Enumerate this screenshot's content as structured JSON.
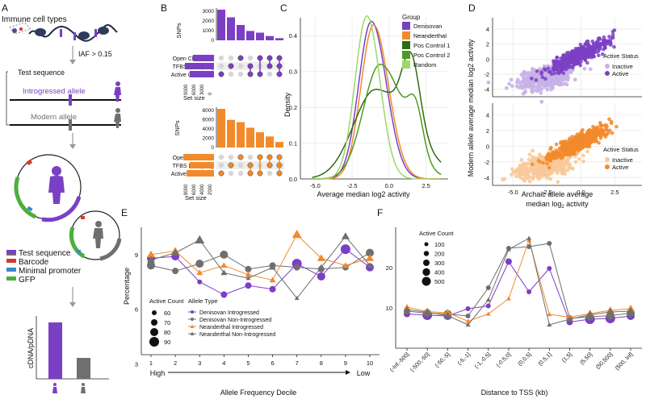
{
  "panels": {
    "a": "A",
    "b": "B",
    "c": "C",
    "d": "D",
    "e": "E",
    "f": "F"
  },
  "colors": {
    "purple": "#7b3fc4",
    "purple_light": "#c6b2e6",
    "orange": "#f28a2b",
    "orange_light": "#f8c99a",
    "grey": "#6f6f6f",
    "green_dark": "#2e6b12",
    "green_mid": "#4c9a24",
    "green_light": "#9ad86a"
  },
  "panel_a": {
    "title": "Immune cell types",
    "iaf_label": "IAF > 0.15",
    "test_sequence": "Test sequence",
    "introgressed_allele": "Introgressed allele",
    "modern_allele": "Modern allele",
    "legend": [
      "Test sequence",
      "Barcode",
      "Minimal promoter",
      "GFP"
    ],
    "bar_ylabel": "cDNA/pDNA"
  },
  "panel_b": {
    "snps_label": "SNPs",
    "sets": [
      "Open Chromatin",
      "TFBS Disrupting",
      "Active Chromatin"
    ],
    "set_size_label": "Set size",
    "top_yticks": [
      "3000",
      "2000",
      "1000",
      "0"
    ],
    "top_xticks": [
      "9000",
      "6000",
      "3000",
      "0"
    ],
    "bottom_yticks": [
      "8000",
      "6000",
      "4000",
      "2000",
      "0"
    ],
    "bottom_xticks": [
      "8000",
      "6000",
      "4000",
      "2000"
    ],
    "top_bars": [
      3600,
      2700,
      1800,
      1100,
      900,
      500,
      250
    ],
    "bottom_bars": [
      8400,
      6000,
      5500,
      4300,
      3300,
      2400,
      1200
    ]
  },
  "chart_data": [
    {
      "type": "line",
      "panel": "C",
      "title": "",
      "xlabel": "Average median log2 activity",
      "ylabel": "Density",
      "xlim": [
        -6,
        4
      ],
      "ylim": [
        0,
        0.45
      ],
      "xticks": [
        "-5.0",
        "-2.5",
        "0.0",
        "2.5"
      ],
      "yticks": [
        "0.0",
        "0.1",
        "0.2",
        "0.3",
        "0.4"
      ],
      "legend_title": "Group",
      "series": [
        {
          "name": "Denisovan",
          "peak_x": -1.2,
          "peak_y": 0.44
        },
        {
          "name": "Neanderthal",
          "peak_x": -1.1,
          "peak_y": 0.43
        },
        {
          "name": "Pos Control 1",
          "peak_x": -1.0,
          "peak_y": 0.25
        },
        {
          "name": "Pos Control 2",
          "peak_x": -0.7,
          "peak_y": 0.32
        },
        {
          "name": "Random",
          "peak_x": -1.5,
          "peak_y": 0.45
        }
      ]
    },
    {
      "type": "scatter",
      "panel": "D",
      "xlabel": "Archaic allele average median log2 activity",
      "ylabel": "Modern allele average median log2 activity",
      "xticks": [
        "-5.0",
        "-2.5",
        "0.0",
        "2.5"
      ],
      "yticks": [
        "4",
        "2",
        "0",
        "-2",
        "-4"
      ],
      "legend_title": "Active Status",
      "legend": [
        "Inactive",
        "Active"
      ]
    },
    {
      "type": "line",
      "panel": "E",
      "xlabel": "Allele Frequency Decile",
      "ylabel": "Percentage",
      "x": [
        1,
        2,
        3,
        4,
        5,
        6,
        7,
        8,
        9,
        10
      ],
      "ylim": [
        3.5,
        10.5
      ],
      "yticks": [
        "9",
        "6",
        "3"
      ],
      "high_label": "High",
      "low_label": "Low",
      "size_legend_title": "Active Count",
      "size_legend": [
        "60",
        "70",
        "80",
        "90"
      ],
      "type_legend_title": "Allele Type",
      "series": [
        {
          "name": "Denisovan Introgressed",
          "values": [
            8.8,
            8.9,
            7.5,
            6.8,
            7.3,
            7.1,
            8.5,
            7.8,
            9.3,
            8.3
          ]
        },
        {
          "name": "Denisovan Non-Introgressed",
          "values": [
            8.4,
            8.1,
            8.5,
            9.0,
            8.2,
            8.4,
            8.3,
            8.2,
            8.3,
            9.1
          ]
        },
        {
          "name": "Neanderthal Introgressed",
          "values": [
            9.0,
            9.2,
            8.0,
            8.4,
            7.9,
            7.6,
            10.1,
            8.8,
            8.4,
            8.8
          ]
        },
        {
          "name": "Neanderthal Non-Introgressed",
          "values": [
            8.7,
            9.1,
            9.8,
            8.0,
            7.7,
            8.3,
            6.6,
            8.3,
            10.0,
            8.4
          ]
        }
      ]
    },
    {
      "type": "line",
      "panel": "F",
      "xlabel": "Distance to TSS (kb)",
      "categories": [
        "(-Inf,-500]",
        "(-500,-50]",
        "(-50,-5]",
        "(-5,-1]",
        "(-1,-0.5]",
        "(-0.5,0]",
        "(0,0.5]",
        "(0.5,1]",
        "(1,5]",
        "(5,50]",
        "(50,500]",
        "(500, Inf]"
      ],
      "ylim": [
        0,
        30
      ],
      "yticks": [
        "20",
        "10"
      ],
      "size_legend_title": "Active Count",
      "size_legend": [
        "100",
        "200",
        "300",
        "400",
        "500"
      ],
      "series": [
        {
          "name": "Denisovan Introgressed",
          "values": [
            8.5,
            8.2,
            8.0,
            9.8,
            10.5,
            21.5,
            14.0,
            19.8,
            6.5,
            7.2,
            7.4,
            8.0
          ]
        },
        {
          "name": "Denisovan Non-Introgressed",
          "values": [
            9.2,
            8.7,
            8.5,
            8.0,
            15.0,
            24.8,
            25.2,
            26.0,
            7.4,
            7.8,
            8.1,
            8.7
          ]
        },
        {
          "name": "Neanderthal Introgressed",
          "values": [
            10.2,
            9.1,
            8.8,
            6.7,
            8.5,
            12.3,
            26.8,
            8.4,
            7.7,
            8.6,
            9.4,
            9.8
          ]
        },
        {
          "name": "Neanderthal Non-Introgressed",
          "values": [
            9.6,
            8.9,
            8.1,
            5.8,
            12.0,
            24.5,
            27.3,
            5.8,
            7.2,
            8.3,
            9.0,
            9.2
          ]
        }
      ]
    }
  ]
}
